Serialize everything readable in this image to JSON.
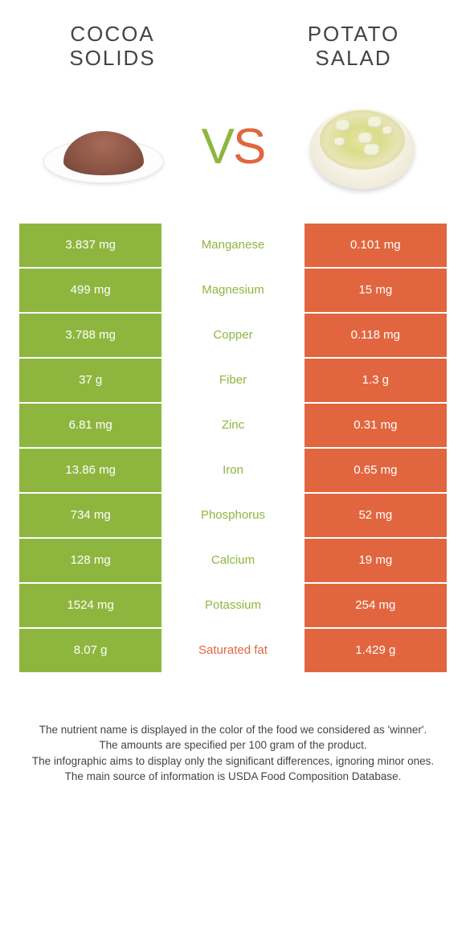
{
  "colors": {
    "green": "#8eb63f",
    "orange": "#e1663f",
    "white": "#ffffff"
  },
  "foods": {
    "left": {
      "title_line1": "Cocoa",
      "title_line2": "Solids"
    },
    "right": {
      "title_line1": "Potato",
      "title_line2": "Salad"
    }
  },
  "vs": {
    "v": "V",
    "s": "S"
  },
  "rows": [
    {
      "nutrient": "Manganese",
      "left": "3.837 mg",
      "right": "0.101 mg",
      "winner": "left"
    },
    {
      "nutrient": "Magnesium",
      "left": "499 mg",
      "right": "15 mg",
      "winner": "left"
    },
    {
      "nutrient": "Copper",
      "left": "3.788 mg",
      "right": "0.118 mg",
      "winner": "left"
    },
    {
      "nutrient": "Fiber",
      "left": "37 g",
      "right": "1.3 g",
      "winner": "left"
    },
    {
      "nutrient": "Zinc",
      "left": "6.81 mg",
      "right": "0.31 mg",
      "winner": "left"
    },
    {
      "nutrient": "Iron",
      "left": "13.86 mg",
      "right": "0.65 mg",
      "winner": "left"
    },
    {
      "nutrient": "Phosphorus",
      "left": "734 mg",
      "right": "52 mg",
      "winner": "left"
    },
    {
      "nutrient": "Calcium",
      "left": "128 mg",
      "right": "19 mg",
      "winner": "left"
    },
    {
      "nutrient": "Potassium",
      "left": "1524 mg",
      "right": "254 mg",
      "winner": "left"
    },
    {
      "nutrient": "Saturated fat",
      "left": "8.07 g",
      "right": "1.429 g",
      "winner": "right"
    }
  ],
  "footer": [
    "The nutrient name is displayed in the color of the food we considered as 'winner'.",
    "The amounts are specified per 100 gram of the product.",
    "The infographic aims to display only the significant differences, ignoring minor ones.",
    "The main source of information is USDA Food Composition Database."
  ]
}
